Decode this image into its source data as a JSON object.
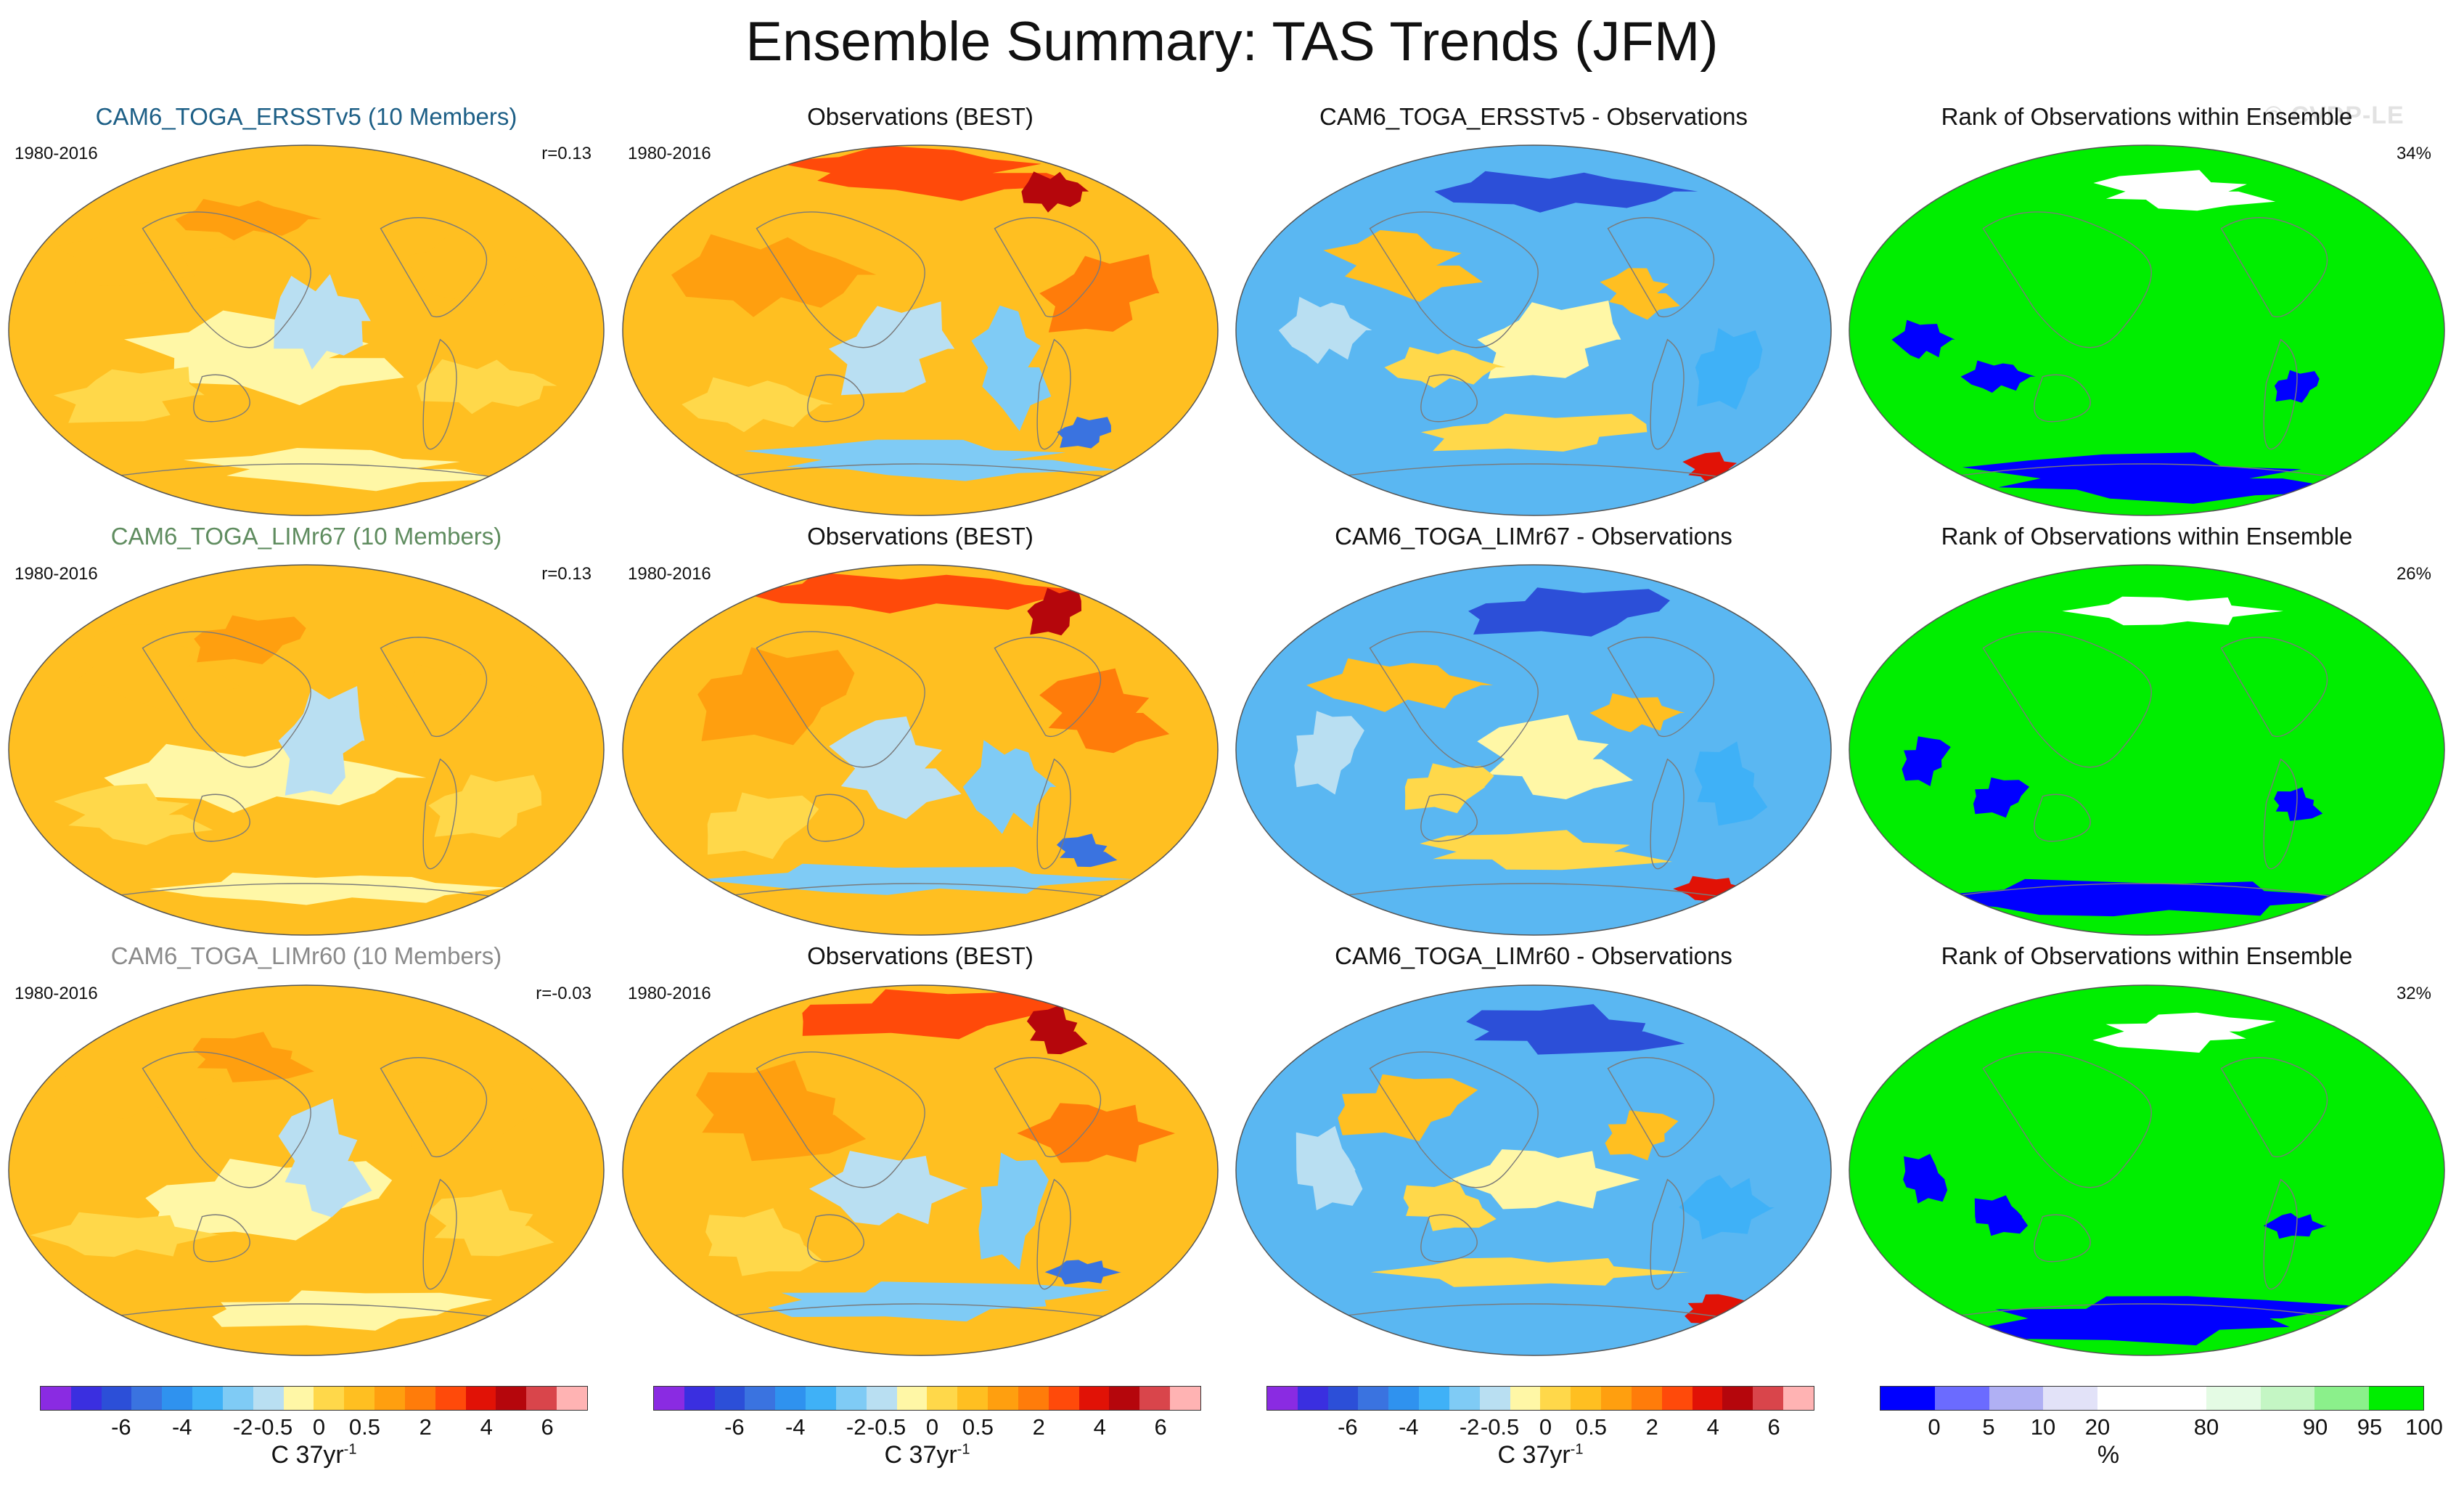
{
  "title": "Ensemble Summary: TAS Trends (JFM)",
  "watermark": "© CVDP-LE",
  "period": "1980-2016",
  "rows": [
    {
      "ensemble_title": "CAM6_TOGA_ERSSTv5 (10 Members)",
      "ensemble_title_color": "#1d5f86",
      "correlation": "r=0.13",
      "obs_title": "Observations (BEST)",
      "diff_title": "CAM6_TOGA_ERSSTv5 - Observations",
      "rank_title": "Rank of Observations within Ensemble",
      "rank_percent": "34%"
    },
    {
      "ensemble_title": "CAM6_TOGA_LIMr67 (10 Members)",
      "ensemble_title_color": "#5f8c5f",
      "correlation": "r=0.13",
      "obs_title": "Observations (BEST)",
      "diff_title": "CAM6_TOGA_LIMr67 - Observations",
      "rank_title": "Rank of Observations within Ensemble",
      "rank_percent": "26%"
    },
    {
      "ensemble_title": "CAM6_TOGA_LIMr60 (10 Members)",
      "ensemble_title_color": "#8a8a8a",
      "correlation": "r=-0.03",
      "obs_title": "Observations (BEST)",
      "diff_title": "CAM6_TOGA_LIMr60 - Observations",
      "rank_title": "Rank of Observations within Ensemble",
      "rank_percent": "32%"
    }
  ],
  "trend_colorbar": {
    "colors": [
      "#8a2be2",
      "#3a2fe0",
      "#2c4fd8",
      "#3a73e0",
      "#2f92ef",
      "#3fb1f7",
      "#7fcbf5",
      "#b9dff2",
      "#fff7a6",
      "#ffd84a",
      "#ffbf21",
      "#ff9f0f",
      "#ff7c0a",
      "#ff4a0a",
      "#e11206",
      "#b5060c",
      "#d9454b",
      "#ffb3b3"
    ],
    "ticks": [
      "-6",
      "-4",
      "-2",
      "-0.5",
      "0",
      "0.5",
      "2",
      "4",
      "6"
    ],
    "unit": "C 37yr",
    "unit_sup": "-1"
  },
  "rank_colorbar": {
    "colors": [
      "#0000ff",
      "#6b6bff",
      "#b0b0f4",
      "#e2e2f8",
      "#ffffff",
      "#ffffff",
      "#e4fbe4",
      "#c4f6c4",
      "#8bf08b",
      "#00ee00"
    ],
    "ticks": [
      "0",
      "5",
      "10",
      "20",
      "80",
      "90",
      "95",
      "100"
    ],
    "unit": "%"
  },
  "map_palette": {
    "trend_warm_base": "#ffbf21",
    "trend_cool_base": "#b9dff2",
    "diff_base": "#5ab7f2",
    "rank_green": "#00ee00",
    "rank_blue": "#0000ff"
  }
}
